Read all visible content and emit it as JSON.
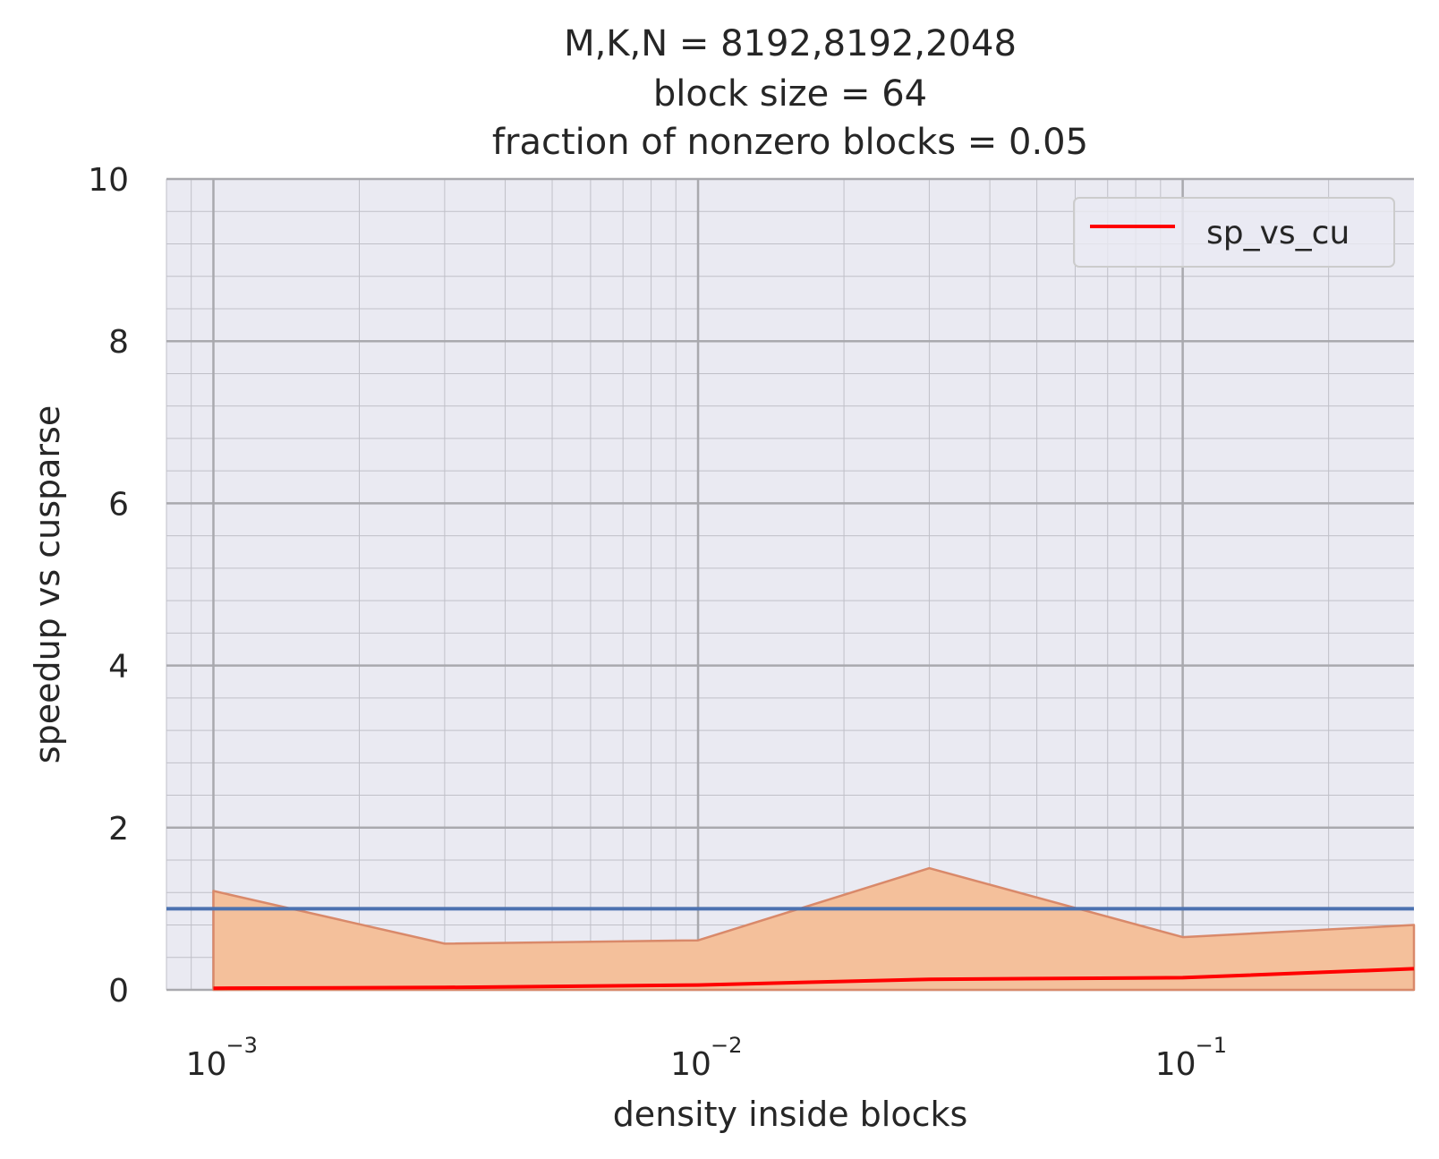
{
  "chart_data": {
    "type": "line",
    "title_lines": [
      "M,K,N = 8192,8192,2048",
      "block size = 64",
      "fraction of nonzero blocks = 0.05"
    ],
    "xlabel": "density inside blocks",
    "ylabel": "speedup vs cusparse",
    "x_scale": "log",
    "xlim": [
      0.0008,
      0.3
    ],
    "ylim": [
      0,
      10
    ],
    "x_ticks": [
      {
        "value": 0.001,
        "base": "10",
        "exp": "−3"
      },
      {
        "value": 0.01,
        "base": "10",
        "exp": "−2"
      },
      {
        "value": 0.1,
        "base": "10",
        "exp": "−1"
      }
    ],
    "y_ticks": [
      {
        "value": 0,
        "label": "0"
      },
      {
        "value": 2,
        "label": "2"
      },
      {
        "value": 4,
        "label": "4"
      },
      {
        "value": 6,
        "label": "6"
      },
      {
        "value": 8,
        "label": "8"
      },
      {
        "value": 10,
        "label": "10"
      }
    ],
    "grid": true,
    "legend": {
      "position": "top-right"
    },
    "series": [
      {
        "name": "sp_vs_cu",
        "color": "#ff0000",
        "x": [
          0.001,
          0.003,
          0.01,
          0.03,
          0.1,
          0.3
        ],
        "y": [
          0.02,
          0.03,
          0.06,
          0.13,
          0.15,
          0.26
        ]
      }
    ],
    "band": {
      "color": "#f4c09b",
      "edge_color": "#d9896a",
      "x": [
        0.001,
        0.003,
        0.01,
        0.03,
        0.1,
        0.3
      ],
      "lower": [
        0,
        0,
        0,
        0,
        0,
        0
      ],
      "upper": [
        1.22,
        0.57,
        0.61,
        1.5,
        0.65,
        0.8
      ]
    },
    "reference_line": {
      "y": 1,
      "color": "#4c72b0"
    }
  }
}
